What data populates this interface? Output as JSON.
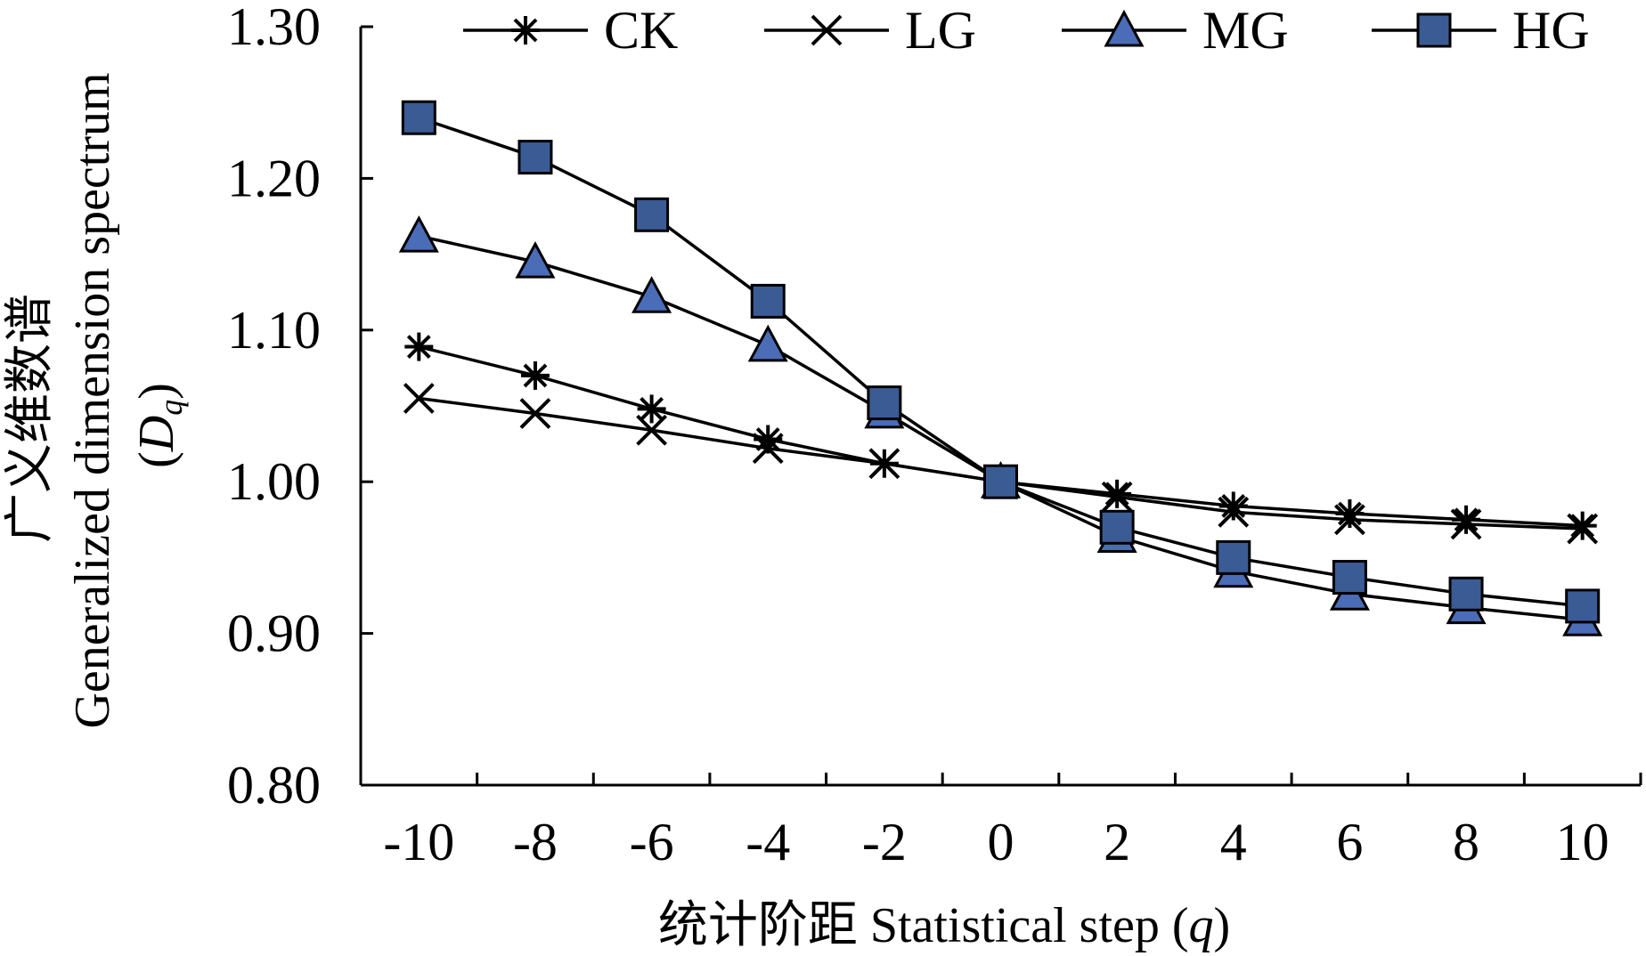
{
  "chart_data": {
    "type": "line",
    "x": [
      -10,
      -8,
      -6,
      -4,
      -2,
      0,
      2,
      4,
      6,
      8,
      10
    ],
    "x_tick_labels": [
      "-10",
      "-8",
      "-6",
      "-4",
      "-2",
      "0",
      "2",
      "4",
      "6",
      "8",
      "10"
    ],
    "y_tick_labels": [
      "1.30",
      "1.20",
      "1.10",
      "1.00",
      "0.90",
      "0.80"
    ],
    "y_ticks": [
      1.3,
      1.2,
      1.1,
      1.0,
      0.9,
      0.8
    ],
    "ylim": [
      0.8,
      1.3
    ],
    "xlabel": "统计阶距 Statistical step (q)",
    "xlabel_main": "统计阶距 Statistical step (",
    "xlabel_var": "q",
    "xlabel_close": ")",
    "ylabel_cn": "广义维数谱",
    "ylabel_en": "Generalized dimension spectrum",
    "ylabel_var_open": "(",
    "ylabel_var": "D",
    "ylabel_var_sub": "q",
    "ylabel_var_close": ")",
    "legend_position": "top",
    "series": [
      {
        "name": "CK",
        "marker": "asterisk",
        "values": [
          1.089,
          1.07,
          1.048,
          1.028,
          1.012,
          1.0,
          0.992,
          0.984,
          0.979,
          0.975,
          0.971
        ]
      },
      {
        "name": "LG",
        "marker": "x",
        "values": [
          1.055,
          1.045,
          1.034,
          1.022,
          1.012,
          1.0,
          0.99,
          0.98,
          0.975,
          0.972,
          0.969
        ]
      },
      {
        "name": "MG",
        "marker": "triangle",
        "values": [
          1.162,
          1.145,
          1.122,
          1.09,
          1.046,
          1.0,
          0.964,
          0.941,
          0.926,
          0.917,
          0.909
        ]
      },
      {
        "name": "HG",
        "marker": "square",
        "values": [
          1.24,
          1.214,
          1.176,
          1.119,
          1.052,
          1.0,
          0.97,
          0.95,
          0.937,
          0.926,
          0.918
        ]
      }
    ],
    "colors": {
      "marker_fill": "#3b5b95",
      "triangle_fill": "#4b6cb7",
      "line": "#000000"
    }
  }
}
